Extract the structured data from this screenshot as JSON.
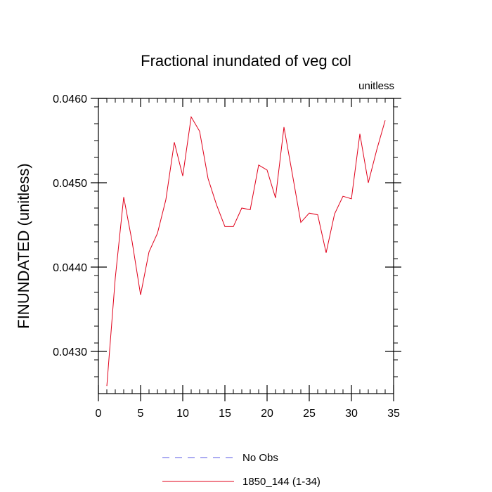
{
  "chart_data": {
    "type": "line",
    "title": "Fractional inundated of veg col",
    "units_label": "unitless",
    "xlabel": "",
    "ylabel": "FINUNDATED  (unitless)",
    "xlim": [
      0,
      35
    ],
    "ylim": [
      0.0425,
      0.046
    ],
    "x_ticks": [
      0,
      5,
      10,
      15,
      20,
      25,
      30,
      35
    ],
    "y_ticks": [
      0.043,
      0.044,
      0.045,
      0.046
    ],
    "y_tick_labels": [
      "0.0430",
      "0.0440",
      "0.0450",
      "0.0460"
    ],
    "grid": false,
    "legend_position": "bottom",
    "series": [
      {
        "name": "No Obs",
        "color": "#5a5ae6",
        "style": "dashed",
        "x": [],
        "values": []
      },
      {
        "name": "1850_144 (1-34)",
        "color": "#e0001a",
        "style": "solid",
        "x": [
          1,
          2,
          3,
          4,
          5,
          6,
          7,
          8,
          9,
          10,
          11,
          12,
          13,
          14,
          15,
          16,
          17,
          18,
          19,
          20,
          21,
          22,
          23,
          24,
          25,
          26,
          27,
          28,
          29,
          30,
          31,
          32,
          33,
          34
        ],
        "values": [
          0.04259,
          0.04387,
          0.04483,
          0.0443,
          0.04367,
          0.04418,
          0.0444,
          0.0448,
          0.04548,
          0.04508,
          0.04578,
          0.04561,
          0.04505,
          0.04474,
          0.04448,
          0.04448,
          0.0447,
          0.04468,
          0.04521,
          0.04515,
          0.04482,
          0.04566,
          0.0451,
          0.04453,
          0.04464,
          0.04462,
          0.04417,
          0.04463,
          0.04484,
          0.04481,
          0.04558,
          0.045,
          0.04539,
          0.04574
        ]
      }
    ]
  }
}
